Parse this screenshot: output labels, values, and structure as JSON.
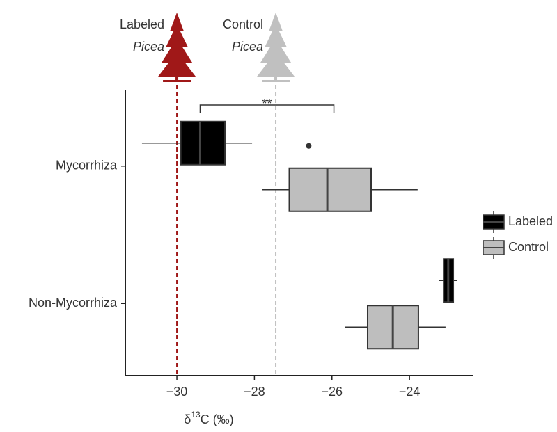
{
  "chart_data": {
    "type": "boxplot",
    "orientation": "horizontal",
    "categories": [
      "Mycorrhiza",
      "Non-Mycorrhiza"
    ],
    "series": [
      {
        "name": "Labeled",
        "color": "#000000",
        "boxes": [
          {
            "min": -30.9,
            "q1": -29.9,
            "median": -29.4,
            "q3": -28.76,
            "max": -28.06
          },
          {
            "min": -23.23,
            "q1": -23.12,
            "median": -23.0,
            "q3": -22.87,
            "max": -22.78
          }
        ]
      },
      {
        "name": "Control",
        "color": "#bebebe",
        "boxes": [
          {
            "min": -27.8,
            "q1": -27.1,
            "median": -26.12,
            "q3": -24.99,
            "max": -23.79,
            "outliers": [
              -26.6
            ]
          },
          {
            "min": -25.66,
            "q1": -25.08,
            "median": -24.43,
            "q3": -23.77,
            "max": -23.07
          }
        ]
      }
    ],
    "xlim": [
      -31.33,
      -22.35
    ],
    "xticks": [
      {
        "value": -30,
        "label": "−30"
      },
      {
        "value": -28,
        "label": "−28"
      },
      {
        "value": -26,
        "label": "−26"
      },
      {
        "value": -24,
        "label": "−24"
      }
    ],
    "x_label": {
      "prefix": "δ",
      "superscript": "13",
      "suffix": "C (‰)"
    },
    "reference_lines": [
      {
        "value": -30,
        "color": "#a01818",
        "label_top": "Labeled",
        "label_bottom": "Picea"
      },
      {
        "value": -27.45,
        "color": "#c0c0c0",
        "label_top": "Control",
        "label_bottom": "Picea"
      }
    ],
    "annotation": {
      "text": "**",
      "x_start": -29.4,
      "x_end": -25.95
    },
    "legend": "right"
  }
}
